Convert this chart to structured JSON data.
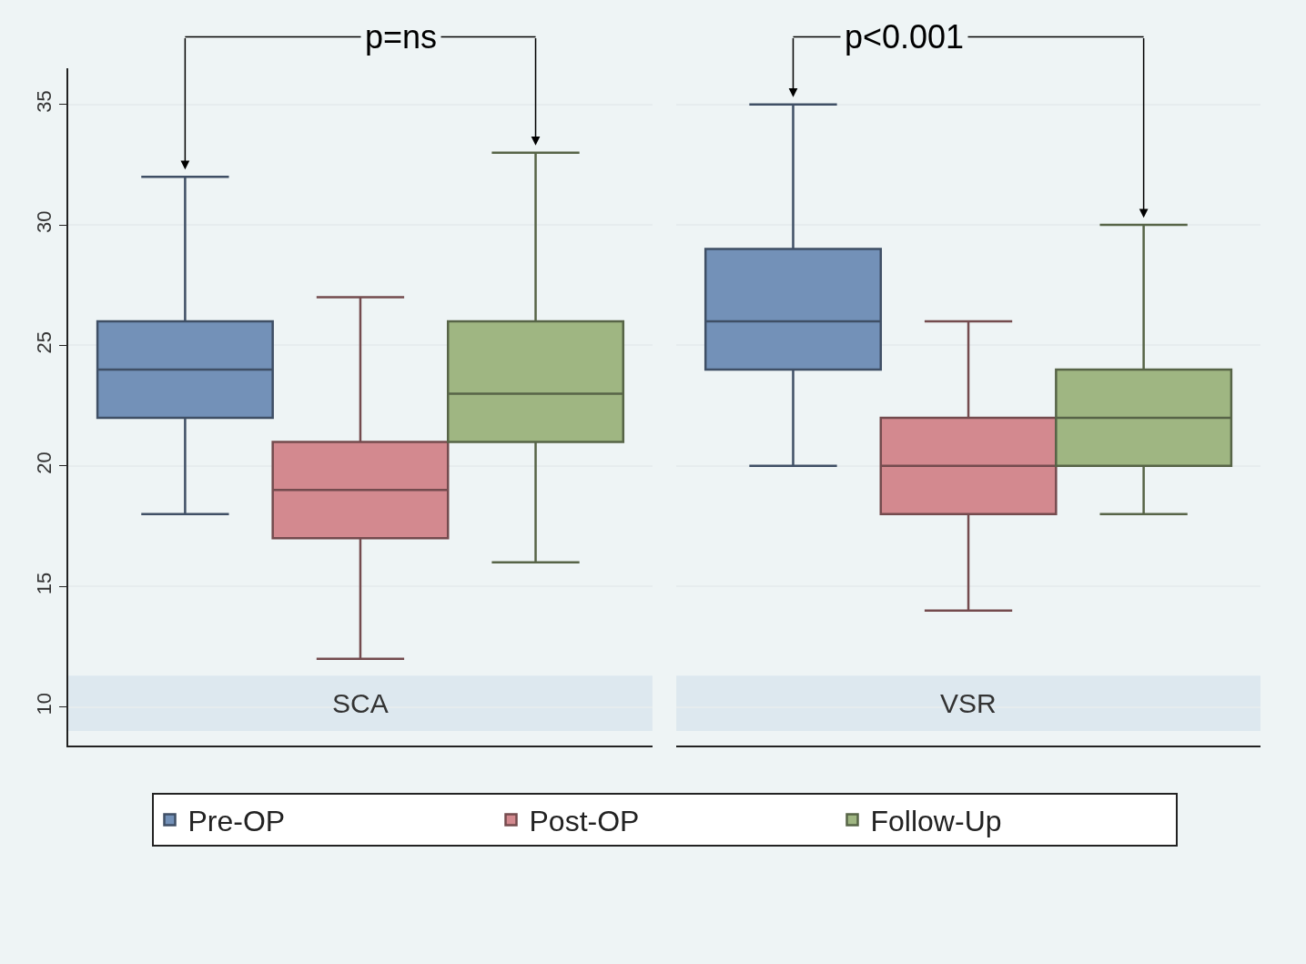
{
  "chart_data": {
    "type": "box",
    "categories": [
      "SCA",
      "VSR"
    ],
    "ylim": [
      8.4,
      36.5
    ],
    "yticks": [
      10,
      15,
      20,
      25,
      30,
      35
    ],
    "grid": "y",
    "legend": "bottom",
    "annotations": [
      "p=ns",
      "p<0.001"
    ],
    "series": [
      {
        "name": "Pre-OP",
        "color": "#7391b8",
        "boxes": [
          {
            "low": 18,
            "q1": 22,
            "median": 24,
            "q3": 26,
            "high": 32
          },
          {
            "low": 20,
            "q1": 24,
            "median": 26,
            "q3": 29,
            "high": 35
          }
        ]
      },
      {
        "name": "Post-OP",
        "color": "#d3898f",
        "boxes": [
          {
            "low": 12,
            "q1": 17,
            "median": 19,
            "q3": 21,
            "high": 27
          },
          {
            "low": 14,
            "q1": 18,
            "median": 20,
            "q3": 22,
            "high": 26
          }
        ]
      },
      {
        "name": "Follow-Up",
        "color": "#9fb682",
        "boxes": [
          {
            "low": 16,
            "q1": 21,
            "median": 23,
            "q3": 26,
            "high": 33
          },
          {
            "low": 18,
            "q1": 20,
            "median": 22,
            "q3": 24,
            "high": 30
          }
        ]
      }
    ]
  }
}
